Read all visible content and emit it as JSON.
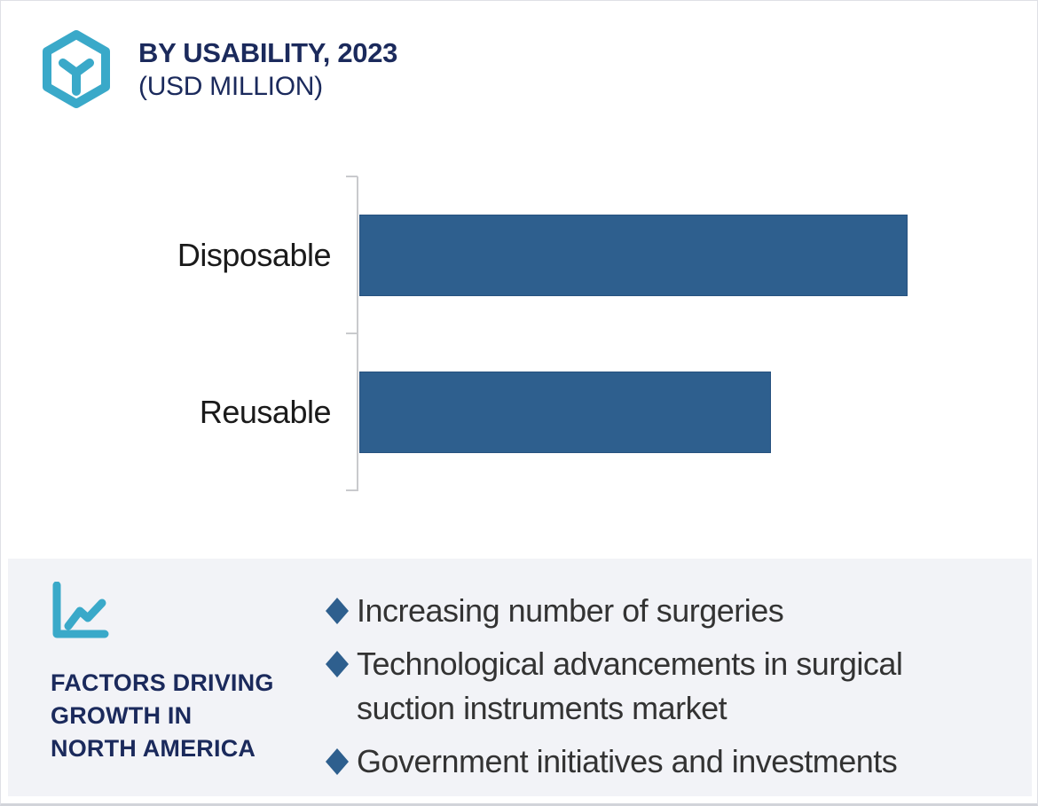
{
  "header": {
    "title": "BY USABILITY, 2023",
    "subtitle": "(USD MILLION)",
    "logo_icon": "hexagon-cube-icon",
    "logo_color": "#3aa9c9"
  },
  "chart_data": {
    "type": "bar",
    "orientation": "horizontal",
    "title": "BY USABILITY, 2023 (USD MILLION)",
    "categories": [
      "Disposable",
      "Reusable"
    ],
    "values": [
      100,
      75
    ],
    "value_units": "relative bar length, percent of longest bar (no numeric axis shown in image)",
    "xlabel": "",
    "ylabel": "",
    "grid": false,
    "legend": false,
    "axis_tick_labels_shown": false,
    "bar_color": "#2e5f8e",
    "axis_color": "#c9cacd"
  },
  "factors": {
    "icon": "line-chart-icon",
    "icon_color": "#3aa9c9",
    "heading": "FACTORS DRIVING\nGROWTH IN\nNORTH AMERICA",
    "bullet_icon": "diamond-bullet-icon",
    "bullet_color": "#2e5f8e",
    "items": [
      "Increasing number of surgeries",
      "Technological advancements in surgical\nsuction instruments market",
      "Government initiatives and investments"
    ]
  },
  "colors": {
    "navy_text": "#1b2a5c",
    "teal_accent": "#3aa9c9",
    "bar_blue": "#2e5f8e",
    "panel_background": "#f2f3f7",
    "axis_gray": "#c9cacd",
    "body_text": "#333333",
    "frame_border": "#dfe0e5"
  }
}
